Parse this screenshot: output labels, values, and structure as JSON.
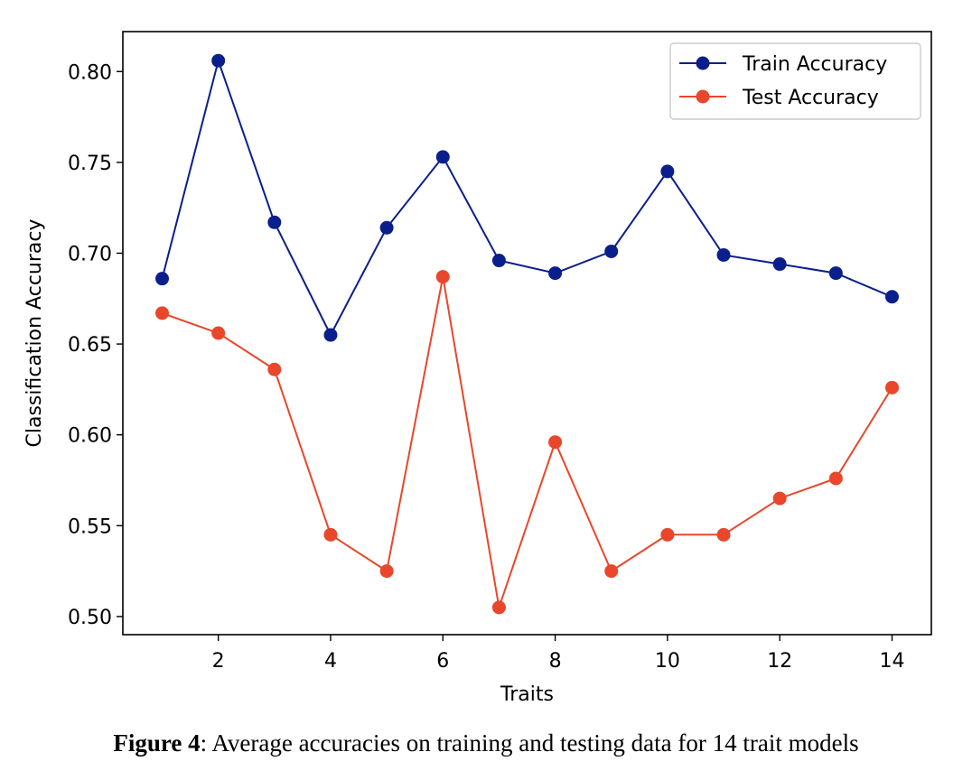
{
  "chart_data": {
    "type": "line",
    "xlabel": "Traits",
    "ylabel": "Classification Accuracy",
    "xlim": [
      0.3,
      14.7
    ],
    "ylim": [
      0.49,
      0.822
    ],
    "xticks": [
      2,
      4,
      6,
      8,
      10,
      12,
      14
    ],
    "yticks": [
      0.5,
      0.55,
      0.6,
      0.65,
      0.7,
      0.75,
      0.8
    ],
    "ytick_labels": [
      "0.50",
      "0.55",
      "0.60",
      "0.65",
      "0.70",
      "0.75",
      "0.80"
    ],
    "grid": false,
    "legend": "top-right",
    "x": [
      1,
      2,
      3,
      4,
      5,
      6,
      7,
      8,
      9,
      10,
      11,
      12,
      13,
      14
    ],
    "series": [
      {
        "name": "Train Accuracy",
        "color": "#0b1f8c",
        "values": [
          0.686,
          0.806,
          0.717,
          0.655,
          0.714,
          0.753,
          0.696,
          0.689,
          0.701,
          0.745,
          0.699,
          0.694,
          0.689,
          0.676
        ]
      },
      {
        "name": "Test Accuracy",
        "color": "#e8472b",
        "values": [
          0.667,
          0.656,
          0.636,
          0.545,
          0.525,
          0.687,
          0.505,
          0.596,
          0.525,
          0.545,
          0.545,
          0.565,
          0.576,
          0.626
        ]
      }
    ]
  },
  "caption": {
    "label": "Figure 4",
    "text": ": Average accuracies on training and testing data for 14 trait models"
  }
}
